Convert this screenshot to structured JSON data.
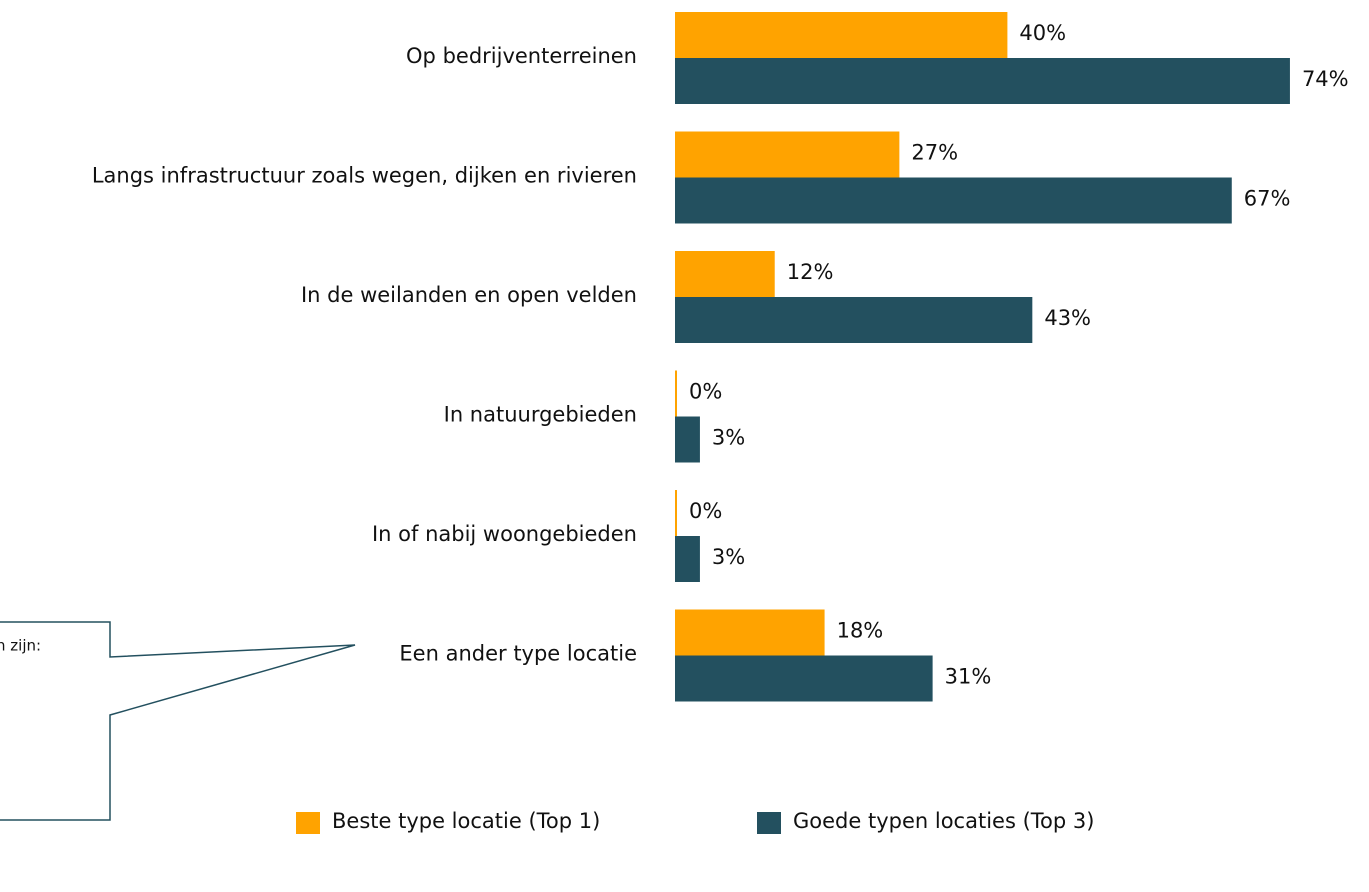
{
  "chart_data": {
    "type": "bar",
    "orientation": "horizontal",
    "categories": [
      "Op bedrijventerreinen",
      "Langs infrastructuur zoals wegen, dijken en rivieren",
      "In de weilanden en open velden",
      "In natuurgebieden",
      "In of nabij woongebieden",
      "Een ander type locatie"
    ],
    "series": [
      {
        "name": "Beste type locatie (Top 1)",
        "color": "#FFA300",
        "values": [
          40,
          27,
          12,
          0,
          0,
          18
        ],
        "value_labels": [
          "40%",
          "27%",
          "12%",
          "0%",
          "0%",
          "18%"
        ]
      },
      {
        "name": "Goede typen locaties (Top 3)",
        "color": "#23505F",
        "values": [
          74,
          67,
          43,
          3,
          3,
          31
        ],
        "value_labels": [
          "74%",
          "67%",
          "43%",
          "3%",
          "3%",
          "31%"
        ]
      }
    ],
    "annotation": "n zijn:"
  }
}
